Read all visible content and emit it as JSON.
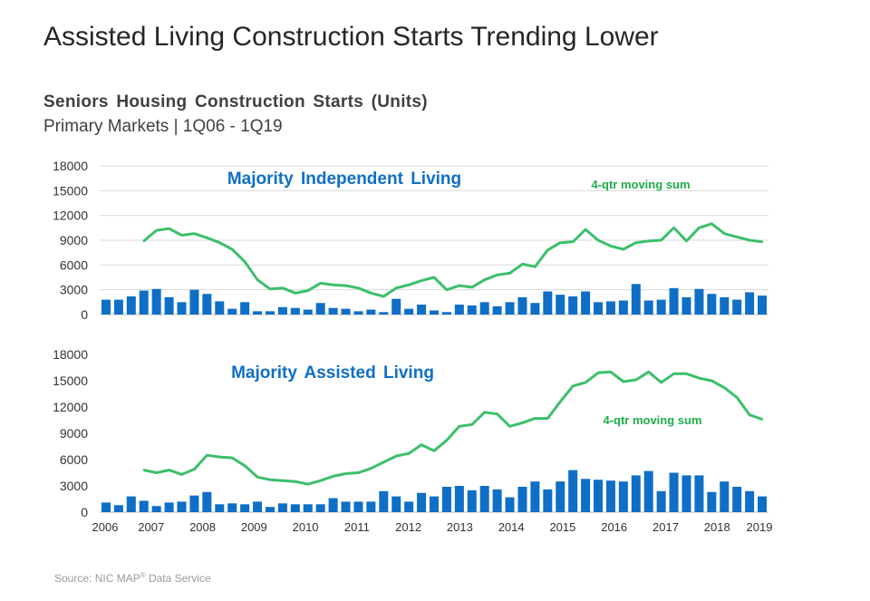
{
  "page": {
    "title": "Assisted Living Construction Starts Trending Lower",
    "chart_title": "Seniors Housing Construction Starts (Units)",
    "chart_subtitle": "Primary Markets | 1Q06 - 1Q19",
    "source_prefix": "Source: NIC MAP",
    "source_sup": "®",
    "source_suffix": " Data Service"
  },
  "colors": {
    "bar": "#0f6fc6",
    "line": "#3cbf6b",
    "panel_label": "#0f6fc6",
    "annotation": "#1fae4a",
    "grid": "#d9d9d9"
  },
  "chart_data": [
    {
      "type": "bar",
      "title": "Majority Independent Living",
      "annotation": "4-qtr moving sum",
      "x_labels": [],
      "ylim": [
        0,
        18000
      ],
      "y_ticks": [
        "0",
        "3000",
        "6000",
        "9000",
        "12000",
        "15000",
        "18000"
      ],
      "grid": true,
      "series": [
        {
          "type": "bar",
          "values": [
            1800,
            1800,
            2200,
            2900,
            3100,
            2100,
            1500,
            3000,
            2500,
            1600,
            700,
            1500,
            400,
            400,
            900,
            800,
            600,
            1400,
            800,
            700,
            400,
            600,
            300,
            1900,
            700,
            1200,
            500,
            300,
            1200,
            1100,
            1500,
            1000,
            1500,
            2100,
            1400,
            2800,
            2400,
            2200,
            2800,
            1500,
            1600,
            1700,
            3700,
            1700,
            1800,
            3200,
            2100,
            3100,
            2500,
            2100,
            1800,
            2700,
            2300
          ]
        },
        {
          "type": "line",
          "start_index": 3,
          "values": [
            8900,
            10200,
            10400,
            9600,
            9800,
            9300,
            8700,
            7900,
            6400,
            4200,
            3100,
            3200,
            2600,
            2900,
            3800,
            3600,
            3500,
            3200,
            2600,
            2200,
            3200,
            3600,
            4100,
            4500,
            3000,
            3500,
            3300,
            4200,
            4800,
            5000,
            6100,
            5800,
            7800,
            8700,
            8800,
            10300,
            9000,
            8300,
            7900,
            8700,
            8900,
            9000,
            10500,
            8900,
            10500,
            11000,
            9800,
            9400,
            9000,
            8800
          ]
        }
      ]
    },
    {
      "type": "bar",
      "title": "Majority Assisted Living",
      "annotation": "4-qtr moving sum",
      "x_labels": [
        "2006",
        "2007",
        "2008",
        "2009",
        "2010",
        "2011",
        "2012",
        "2013",
        "2014",
        "2015",
        "2016",
        "2017",
        "2018",
        "2019"
      ],
      "ylim": [
        0,
        18000
      ],
      "y_ticks": [
        "0",
        "3000",
        "6000",
        "9000",
        "12000",
        "15000",
        "18000"
      ],
      "grid": false,
      "series": [
        {
          "type": "bar",
          "values": [
            1100,
            800,
            1800,
            1300,
            700,
            1100,
            1200,
            1900,
            2300,
            900,
            1000,
            900,
            1200,
            600,
            1000,
            900,
            900,
            900,
            1600,
            1200,
            1200,
            1200,
            2400,
            1800,
            1200,
            2200,
            1800,
            2900,
            3000,
            2500,
            3000,
            2600,
            1700,
            2900,
            3500,
            2600,
            3500,
            4800,
            3800,
            3700,
            3600,
            3500,
            4200,
            4700,
            2400,
            4500,
            4200,
            4200,
            2300,
            3500,
            2900,
            2400,
            1800
          ]
        },
        {
          "type": "line",
          "start_index": 3,
          "values": [
            4800,
            4500,
            4800,
            4300,
            4900,
            6500,
            6300,
            6200,
            5300,
            4000,
            3700,
            3600,
            3500,
            3200,
            3600,
            4100,
            4400,
            4500,
            5000,
            5700,
            6400,
            6700,
            7700,
            7000,
            8200,
            9800,
            10000,
            11400,
            11200,
            9800,
            10200,
            10700,
            10700,
            12600,
            14400,
            14800,
            15900,
            16000,
            14900,
            15100,
            16000,
            14800,
            15800,
            15800,
            15300,
            15000,
            14200,
            13100,
            11100,
            10600
          ]
        }
      ]
    }
  ]
}
